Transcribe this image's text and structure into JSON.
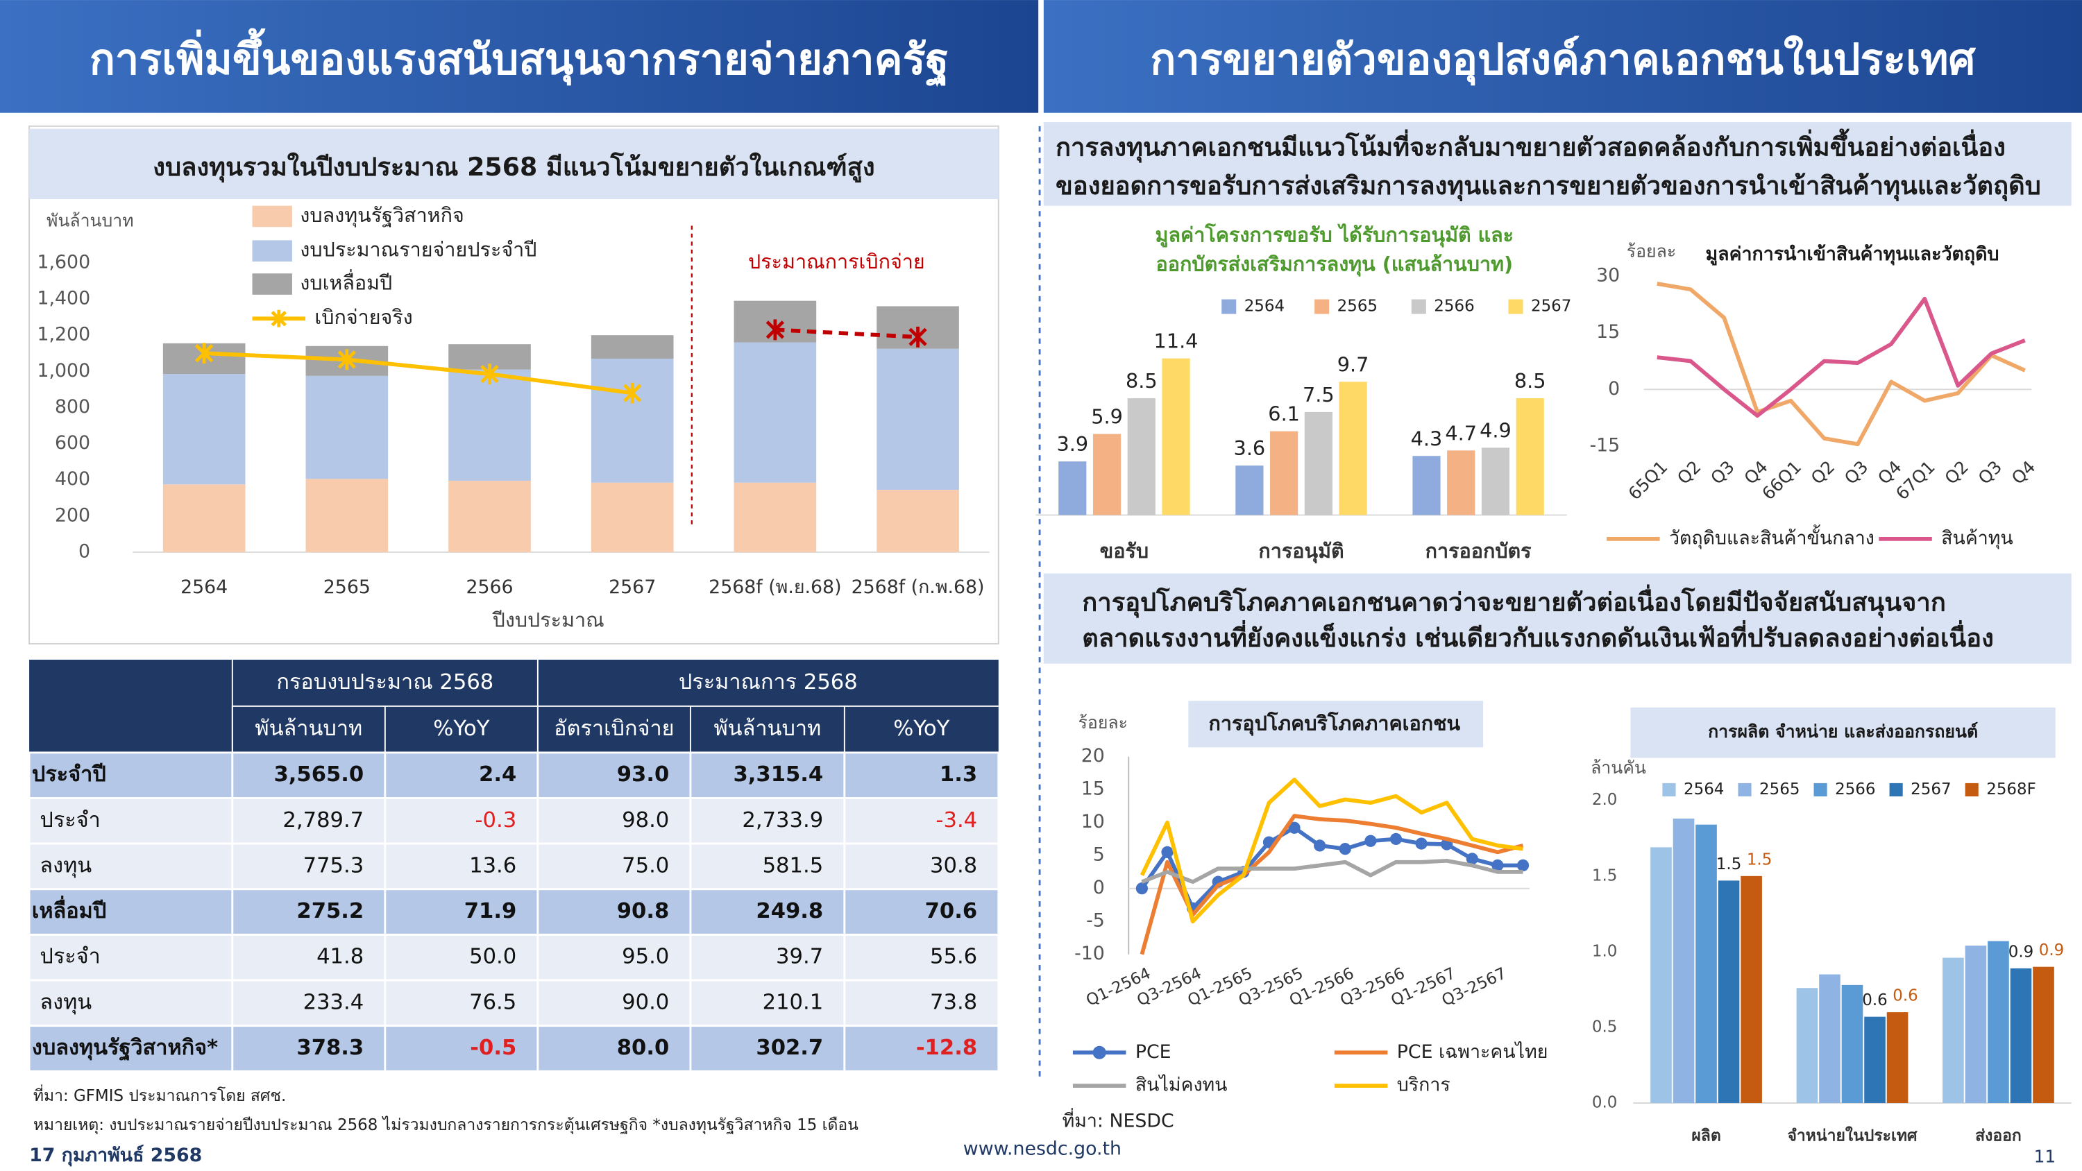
{
  "headers": {
    "left": "การเพิ่มขึ้นของแรงสนับสนุนจากรายจ่ายภาครัฐ",
    "right": "การขยายตัวของอุปสงค์ภาคเอกชนในประเทศ"
  },
  "text_boxes": {
    "investment": [
      "การลงทุนภาคเอกชนมีแนวโน้มที่จะกลับมาขยายตัวสอดคล้องกับการเพิ่มขึ้นอย่างต่อเนื่อง",
      "ของยอดการขอรับการส่งเสริมการลงทุนและการขยายตัวของการนำเข้าสินค้าทุนและวัตถุดิบ"
    ],
    "consumption": [
      "การอุปโภคบริโภคภาคเอกชนคาดว่าจะขยายตัวต่อเนื่องโดยมีปัจจัยสนับสนุนจาก",
      "ตลาดแรงงานที่ยังคงแข็งแกร่ง เช่นเดียวกับแรงกดดันเงินเฟ้อที่ปรับลดลงอย่างต่อเนื่อง"
    ]
  },
  "chart_data": [
    {
      "type": "bar",
      "stacked": true,
      "title": "งบลงทุนรวมในปีงบประมาณ 2568 มีแนวโน้มขยายตัวในเกณฑ์สูง",
      "y_label": "พันล้านบาท",
      "x_label": "ปีงบประมาณ",
      "categories": [
        "2564",
        "2565",
        "2566",
        "2567",
        "2568f (พ.ย.68)",
        "2568f (ก.พ.68)"
      ],
      "ylim": [
        0,
        1600
      ],
      "yticks": [
        0,
        200,
        400,
        600,
        800,
        {
          "value": 1000,
          "label": "1,000"
        },
        {
          "value": 1200,
          "label": "1,200"
        },
        {
          "value": 1400,
          "label": "1,400"
        },
        {
          "value": 1600,
          "label": "1,600"
        }
      ],
      "annotations": [
        "ประมาณการเบิกจ่าย"
      ],
      "series": [
        {
          "name": "งบลงทุนรัฐวิสาหกิจ",
          "color": "#f8cbad",
          "values": [
            375,
            405,
            395,
            385,
            385,
            345
          ]
        },
        {
          "name": "งบประมาณรายจ่ายประจำปี",
          "color": "#b4c7e7",
          "values": [
            610,
            570,
            615,
            685,
            775,
            780
          ]
        },
        {
          "name": "งบเหลื่อมปี",
          "color": "#a5a5a5",
          "values": [
            170,
            165,
            140,
            130,
            230,
            235
          ]
        },
        {
          "name": "เบิกจ่ายจริง",
          "type": "line",
          "marker": "x",
          "color": "#ffc000",
          "values": [
            1100,
            1065,
            985,
            880,
            null,
            null
          ]
        },
        {
          "type": "line",
          "marker": "x",
          "dashed": true,
          "color": "#c00000",
          "values": [
            null,
            null,
            null,
            null,
            1230,
            1190
          ]
        }
      ]
    },
    {
      "type": "bar",
      "title": [
        "มูลค่าโครงการขอรับ ได้รับการอนุมัติ และ",
        "ออกบัตรส่งเสริมการลงทุน (แสนล้านบาท)"
      ],
      "categories": [
        "ขอรับ",
        "การอนุมัติ",
        "การออกบัตร"
      ],
      "series": [
        {
          "name": "2564",
          "color": "#8faadc",
          "values": [
            3.9,
            3.6,
            4.3
          ]
        },
        {
          "name": "2565",
          "color": "#f4b183",
          "values": [
            5.9,
            6.1,
            4.7
          ]
        },
        {
          "name": "2566",
          "color": "#c9c9c9",
          "values": [
            8.5,
            7.5,
            4.9
          ]
        },
        {
          "name": "2567",
          "color": "#ffd966",
          "values": [
            11.4,
            9.7,
            8.5
          ]
        }
      ]
    },
    {
      "type": "line",
      "title": "มูลค่าการนำเข้าสินค้าทุนและวัตถุดิบ",
      "y_label": "ร้อยละ",
      "categories": [
        "65Q1",
        "Q2",
        "Q3",
        "Q4",
        "66Q1",
        "Q2",
        "Q3",
        "Q4",
        "67Q1",
        "Q2",
        "Q3",
        "Q4"
      ],
      "ylim": [
        -15,
        30
      ],
      "yticks": [
        -15,
        0,
        15,
        30
      ],
      "series": [
        {
          "name": "วัตถุดิบและสินค้าขั้นกลาง",
          "color": "#f0a868",
          "values": [
            28,
            26.5,
            19,
            -6,
            -3,
            -13,
            -14.5,
            2,
            -3,
            -1,
            9,
            5
          ]
        },
        {
          "name": "สินค้าทุน",
          "color": "#d9578a",
          "values": [
            8.5,
            7.5,
            0,
            -7,
            0,
            7.5,
            7,
            12,
            24,
            1,
            9.5,
            13
          ]
        }
      ]
    },
    {
      "type": "line",
      "title": "การอุปโภคบริโภคภาคเอกชน",
      "y_label": "ร้อยละ",
      "source": "ที่มา: NESDC",
      "categories": [
        "Q1-2564",
        null,
        "Q3-2564",
        null,
        "Q1-2565",
        null,
        "Q3-2565",
        null,
        "Q1-2566",
        null,
        "Q3-2566",
        null,
        "Q1-2567",
        null,
        "Q3-2567",
        null
      ],
      "ylim": [
        -10,
        20
      ],
      "yticks": [
        -10,
        -5,
        0,
        5,
        10,
        15,
        20
      ],
      "series": [
        {
          "name": "PCE",
          "marker": "circle",
          "color": "#4472c4",
          "values": [
            0,
            5.5,
            -3,
            1,
            2.5,
            7,
            9.2,
            6.5,
            6,
            7.2,
            7.5,
            6.8,
            6.7,
            4.5,
            3.5,
            3.5
          ]
        },
        {
          "name": "PCE เฉพาะคนไทย",
          "color": "#ed7d31",
          "values": [
            -10,
            4,
            -4,
            0.5,
            2,
            5.5,
            11,
            10.5,
            10.3,
            9.8,
            9.2,
            8.3,
            7.5,
            6.5,
            5.5,
            6.5
          ]
        },
        {
          "name": "สินไม่คงทน",
          "color": "#a5a5a5",
          "values": [
            1,
            2.5,
            1,
            3,
            3,
            3,
            3,
            3.5,
            4,
            2,
            4,
            4,
            4.2,
            3.5,
            2.5,
            2.5
          ]
        },
        {
          "name": "บริการ",
          "color": "#ffc000",
          "values": [
            2,
            10,
            -5,
            -1,
            2,
            13,
            16.5,
            12.5,
            13.5,
            13,
            14,
            11.5,
            13,
            7.5,
            6.5,
            6
          ]
        }
      ]
    },
    {
      "type": "bar",
      "title": "การผลิต จำหน่าย และส่งออกรถยนต์",
      "y_label": "ล้านคัน",
      "categories": [
        "ผลิต",
        "จำหน่ายในประเทศ",
        "ส่งออก"
      ],
      "ylim": [
        0,
        2
      ],
      "yticks": [
        {
          "value": 0,
          "label": "0.0"
        },
        0.5,
        {
          "value": 1,
          "label": "1.0"
        },
        1.5,
        {
          "value": 2,
          "label": "2.0"
        }
      ],
      "series": [
        {
          "name": "2564",
          "color": "#9dc3e6",
          "values": [
            1.69,
            0.76,
            0.96
          ]
        },
        {
          "name": "2565",
          "color": "#8fb4e3",
          "values": [
            1.88,
            0.85,
            1.04
          ]
        },
        {
          "name": "2566",
          "color": "#5b9bd5",
          "values": [
            1.84,
            0.78,
            1.07
          ]
        },
        {
          "name": "2567",
          "color": "#2e75b6",
          "values": [
            1.47,
            0.57,
            0.89
          ],
          "value_labels": [
            "1.5",
            "0.6",
            "0.9"
          ]
        },
        {
          "name": "2568F",
          "color": "#c55a11",
          "values": [
            1.5,
            0.6,
            0.9
          ],
          "value_labels": [
            "1.5",
            "0.6",
            "0.9"
          ]
        }
      ]
    }
  ],
  "table": {
    "header": [
      [
        "กรอบงบประมาณ 2568",
        "ประมาณการ 2568"
      ],
      [
        "พันล้านบาท",
        "%YoY",
        "อัตราเบิกจ่าย",
        "พันล้านบาท",
        "%YoY"
      ]
    ],
    "rows": [
      [
        "ประจำปี",
        "3,565.0",
        "2.4",
        "93.0",
        "3,315.4",
        "1.3"
      ],
      [
        "ประจำ",
        "2,789.7",
        "-0.3",
        "98.0",
        "2,733.9",
        "-3.4"
      ],
      [
        "ลงทุน",
        "775.3",
        "13.6",
        "75.0",
        "581.5",
        "30.8"
      ],
      [
        "เหลื่อมปี",
        "275.2",
        "71.9",
        "90.8",
        "249.8",
        "70.6"
      ],
      [
        "ประจำ",
        "41.8",
        "50.0",
        "95.0",
        "39.7",
        "55.6"
      ],
      [
        "ลงทุน",
        "233.4",
        "76.5",
        "90.0",
        "210.1",
        "73.8"
      ],
      [
        "งบลงทุนรัฐวิสาหกิจ*",
        "378.3",
        "-0.5",
        "80.0",
        "302.7",
        "-12.8"
      ]
    ]
  },
  "notes": {
    "source": "ที่มา: GFMIS ประมาณการโดย สศช.",
    "remark": "หมายเหตุ: งบประมาณรายจ่ายปีงบประมาณ 2568 ไม่รวมงบกลางรายการกระตุ้นเศรษฐกิจ  *งบลงทุนรัฐวิสาหกิจ 15 เดือน"
  },
  "footer": {
    "date": "17 กุมภาพันธ์ 2568",
    "website": "www.nesdc.go.th",
    "page": "11"
  }
}
